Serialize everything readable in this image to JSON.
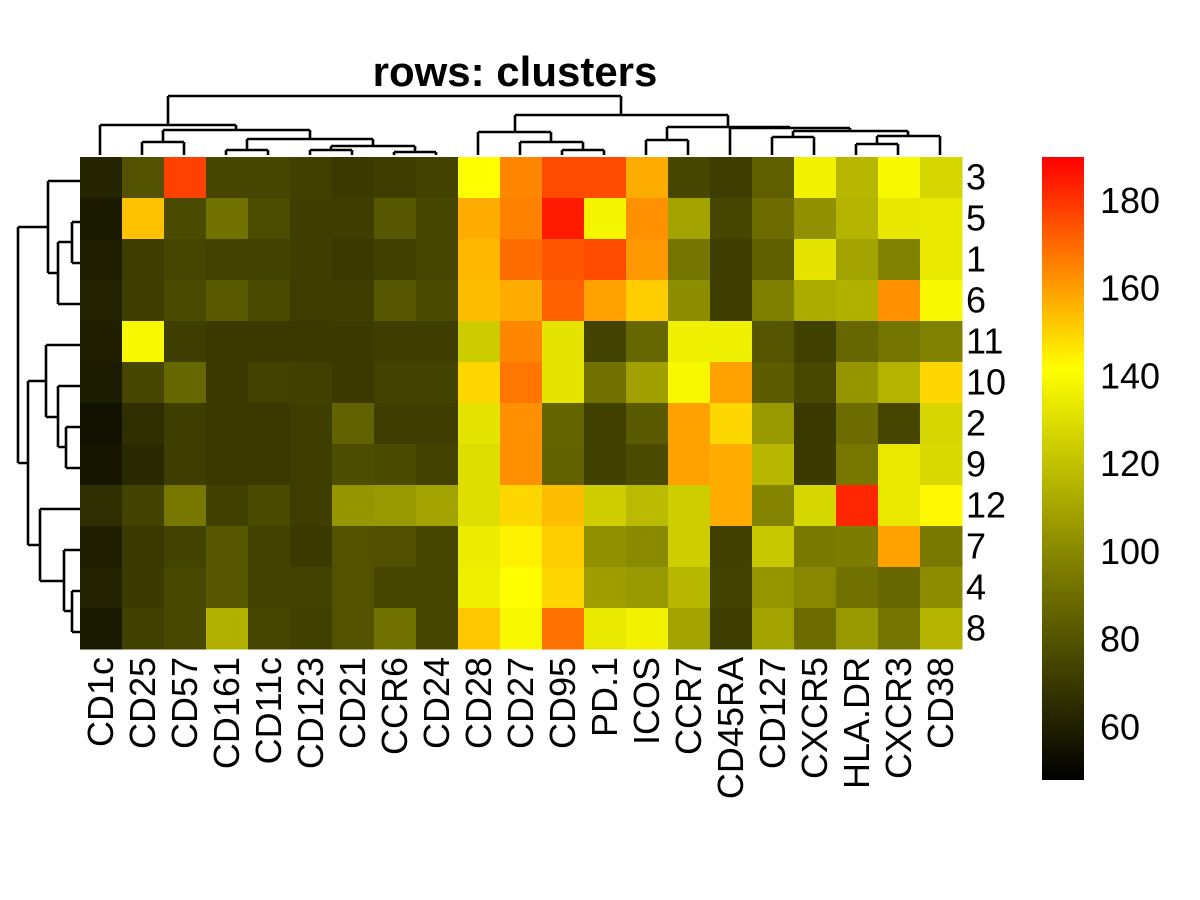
{
  "chart_data": {
    "type": "heatmap",
    "title": "rows: clusters",
    "columns": [
      "CD1c",
      "CD25",
      "CD57",
      "CD161",
      "CD11c",
      "CD123",
      "CD21",
      "CCR6",
      "CD24",
      "CD28",
      "CD27",
      "CD95",
      "PD.1",
      "ICOS",
      "CCR7",
      "CD45RA",
      "CD127",
      "CXCR5",
      "HLA.DR",
      "CXCR3",
      "CD38"
    ],
    "rows": [
      "3",
      "5",
      "1",
      "6",
      "11",
      "10",
      "2",
      "9",
      "12",
      "7",
      "4",
      "8"
    ],
    "values": [
      [
        62,
        80,
        178,
        75,
        75,
        73,
        70,
        72,
        74,
        143,
        165,
        176,
        176,
        158,
        75,
        72,
        85,
        138,
        117,
        140,
        128
      ],
      [
        58,
        154,
        77,
        92,
        78,
        72,
        72,
        82,
        75,
        158,
        166,
        185,
        139,
        163,
        110,
        75,
        90,
        103,
        116,
        134,
        135
      ],
      [
        60,
        72,
        75,
        74,
        74,
        72,
        70,
        73,
        75,
        156,
        170,
        174,
        176,
        162,
        93,
        72,
        85,
        133,
        110,
        98,
        135
      ],
      [
        61,
        72,
        77,
        83,
        77,
        72,
        72,
        82,
        77,
        155,
        158,
        172,
        160,
        152,
        102,
        72,
        97,
        113,
        115,
        163,
        140
      ],
      [
        60,
        140,
        72,
        70,
        70,
        70,
        71,
        72,
        72,
        124,
        165,
        133,
        74,
        88,
        137,
        137,
        81,
        73,
        88,
        93,
        98
      ],
      [
        59,
        75,
        88,
        70,
        74,
        73,
        71,
        74,
        74,
        150,
        168,
        133,
        92,
        109,
        140,
        160,
        84,
        76,
        105,
        116,
        150
      ],
      [
        55,
        66,
        72,
        70,
        70,
        72,
        86,
        72,
        72,
        133,
        163,
        87,
        73,
        83,
        160,
        150,
        106,
        70,
        90,
        75,
        128
      ],
      [
        56,
        64,
        72,
        70,
        70,
        72,
        78,
        77,
        74,
        131,
        163,
        86,
        73,
        77,
        160,
        158,
        117,
        71,
        94,
        135,
        129
      ],
      [
        66,
        74,
        94,
        73,
        77,
        72,
        105,
        106,
        110,
        131,
        150,
        155,
        125,
        118,
        125,
        158,
        99,
        128,
        183,
        135,
        144
      ],
      [
        60,
        70,
        74,
        82,
        74,
        70,
        80,
        79,
        75,
        136,
        145,
        152,
        103,
        101,
        125,
        73,
        123,
        95,
        96,
        160,
        95
      ],
      [
        61,
        71,
        76,
        82,
        74,
        74,
        80,
        75,
        75,
        137,
        143,
        150,
        108,
        106,
        117,
        74,
        105,
        100,
        92,
        88,
        102
      ],
      [
        58,
        73,
        76,
        115,
        75,
        73,
        80,
        92,
        75,
        153,
        140,
        169,
        135,
        138,
        110,
        72,
        110,
        90,
        106,
        93,
        116
      ]
    ],
    "legend": {
      "ticks": [
        60,
        80,
        100,
        120,
        140,
        160,
        180
      ],
      "min": 48,
      "max": 190,
      "colors": [
        "#000000",
        "#7a7a00",
        "#ffff00",
        "#ff0000"
      ]
    }
  }
}
